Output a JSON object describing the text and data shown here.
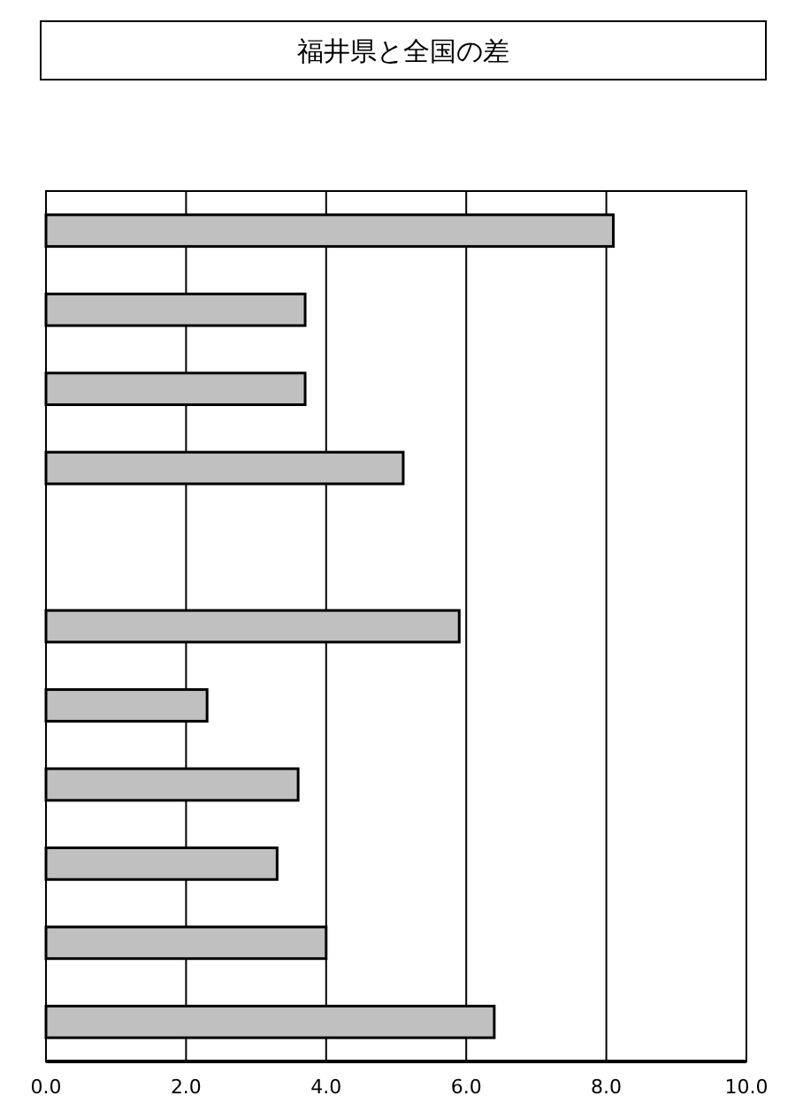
{
  "chart_data": {
    "type": "bar",
    "title": "福井県と全国の差",
    "orientation": "horizontal",
    "categories": [
      null,
      null,
      null,
      null,
      null,
      null,
      null,
      null,
      null,
      null,
      null
    ],
    "values": [
      8.1,
      3.7,
      3.7,
      5.1,
      null,
      5.9,
      2.3,
      3.6,
      3.3,
      4.0,
      6.4
    ],
    "color": "#c0c0c0",
    "xlim": [
      0,
      10
    ],
    "xticks": [
      {
        "value": 0,
        "label": "0.0"
      },
      {
        "value": 2,
        "label": "2.0"
      },
      {
        "value": 4,
        "label": "4.0"
      },
      {
        "value": 6,
        "label": "6.0"
      },
      {
        "value": 8,
        "label": "8.0"
      },
      {
        "value": 10,
        "label": "10.0"
      }
    ],
    "grid": "x"
  }
}
